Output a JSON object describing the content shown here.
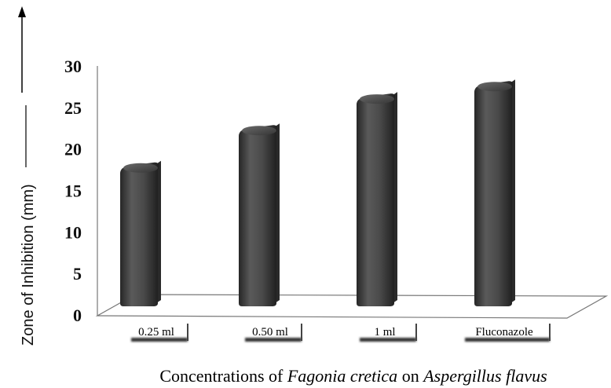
{
  "chart_data": {
    "type": "bar",
    "categories": [
      "0.25 ml",
      "0.50 ml",
      "1 ml",
      "Fluconazole"
    ],
    "values": [
      18,
      22.5,
      26.3,
      27.8
    ],
    "yticks": [
      "0",
      "5",
      "10",
      "15",
      "20",
      "25",
      "30"
    ],
    "ylim": [
      0,
      30
    ],
    "ylabel": "Zone of Inhibition (mm)",
    "xlabel": {
      "part1": "Concentrations of ",
      "part2": "Fagonia cretica",
      "part3": " on ",
      "part4": "Aspergillus flavus"
    },
    "grid": false,
    "legend": "none",
    "bar_color": "#4a4a4a"
  }
}
